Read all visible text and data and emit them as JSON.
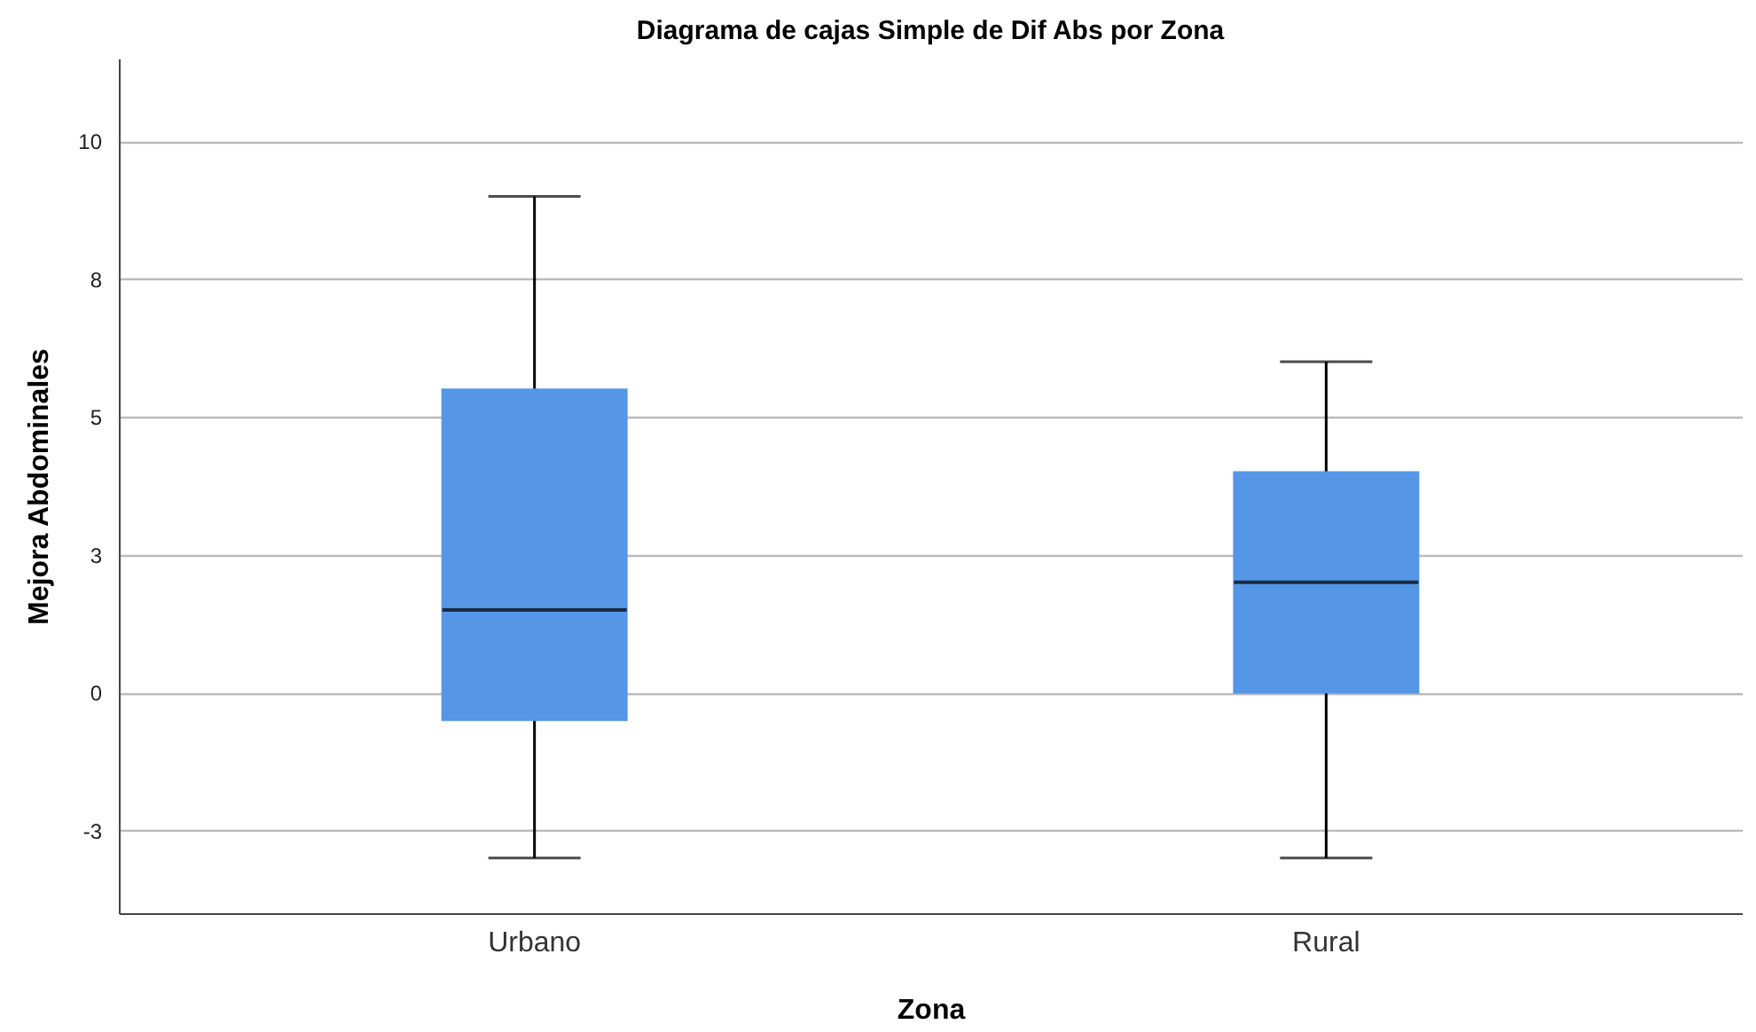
{
  "chart_data": {
    "type": "box",
    "title": "Diagrama de cajas Simple de Dif Abs por Zona",
    "xlabel": "Zona",
    "ylabel": "Mejora Abdominales",
    "categories": [
      "Urbano",
      "Rural"
    ],
    "boxes": [
      {
        "low": -3,
        "q1": -0.5,
        "median": 1.5,
        "q3": 5.5,
        "high": 9
      },
      {
        "low": -3,
        "q1": 0,
        "median": 2,
        "q3": 4,
        "high": 6
      }
    ],
    "color": "#5596e6",
    "ylim": [
      -4,
      11.5
    ],
    "yticks": [
      {
        "value": -2.5,
        "label": "-3"
      },
      0,
      {
        "value": 2.5,
        "label": "3"
      },
      5,
      {
        "value": 7.5,
        "label": "8"
      },
      10
    ],
    "grid": "y"
  }
}
